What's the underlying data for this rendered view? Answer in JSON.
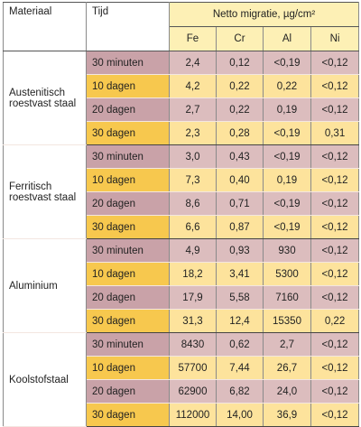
{
  "header": {
    "material": "Materiaal",
    "time": "Tijd",
    "migration": "Netto migratie, µg/cm²",
    "elements": [
      "Fe",
      "Cr",
      "Al",
      "Ni"
    ]
  },
  "groups": [
    {
      "material": "Austenitisch roestvast staal",
      "rows": [
        [
          "30 minuten",
          "2,4",
          "0,12",
          "<0,19",
          "<0,12"
        ],
        [
          "10 dagen",
          "4,2",
          "0,22",
          "0,22",
          "<0,12"
        ],
        [
          "20 dagen",
          "2,7",
          "0,22",
          "0,19",
          "<0,12"
        ],
        [
          "30 dagen",
          "2,3",
          "0,28",
          "<0,19",
          "0,31"
        ]
      ]
    },
    {
      "material": "Ferritisch roestvast staal",
      "rows": [
        [
          "30 minuten",
          "3,0",
          "0,43",
          "<0,19",
          "<0,12"
        ],
        [
          "10 dagen",
          "7,3",
          "0,40",
          "0,19",
          "<0,12"
        ],
        [
          "20 dagen",
          "8,6",
          "0,71",
          "<0,19",
          "<0,12"
        ],
        [
          "30 dagen",
          "6,6",
          "0,87",
          "<0,19",
          "<0,12"
        ]
      ]
    },
    {
      "material": "Aluminium",
      "rows": [
        [
          "30 minuten",
          "4,9",
          "0,93",
          "930",
          "<0,12"
        ],
        [
          "10 dagen",
          "18,2",
          "3,41",
          "5300",
          "<0,12"
        ],
        [
          "20 dagen",
          "17,9",
          "5,58",
          "7160",
          "<0,12"
        ],
        [
          "30 dagen",
          "31,3",
          "12,4",
          "15350",
          "0,22"
        ]
      ]
    },
    {
      "material": "Koolstofstaal",
      "rows": [
        [
          "30 minuten",
          "8430",
          "0,62",
          "2,7",
          "<0,12"
        ],
        [
          "10 dagen",
          "57700",
          "7,44",
          "26,7",
          "<0,12"
        ],
        [
          "20 dagen",
          "62900",
          "6,82",
          "24,0",
          "<0,12"
        ],
        [
          "30 dagen",
          "112000",
          "14,00",
          "36,9",
          "<0,12"
        ]
      ]
    }
  ]
}
